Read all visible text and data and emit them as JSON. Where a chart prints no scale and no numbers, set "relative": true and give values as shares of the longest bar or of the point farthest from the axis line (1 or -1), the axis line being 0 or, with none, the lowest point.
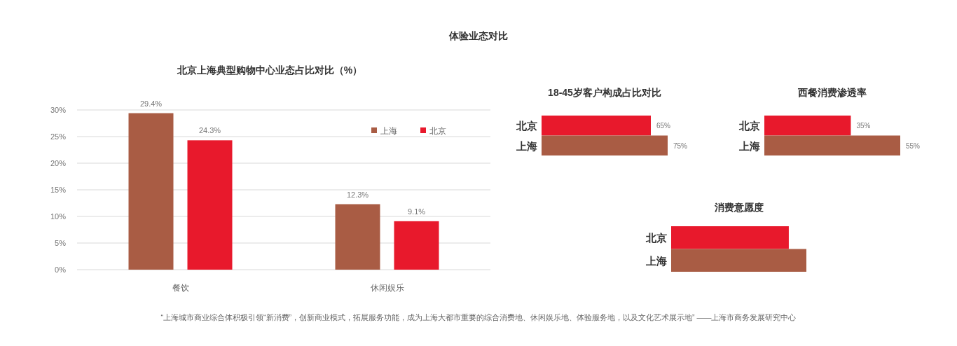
{
  "chart_data": [
    {
      "type": "other",
      "title": "体验业态对比"
    },
    {
      "type": "bar",
      "title": "北京上海典型购物中心业态占比对比（%）",
      "categories": [
        "餐饮",
        "休闲娱乐"
      ],
      "ylim": [
        0,
        30
      ],
      "yticks": [
        {
          "value": 0,
          "label": "0%"
        },
        {
          "value": 5,
          "label": "5%"
        },
        {
          "value": 10,
          "label": "10%"
        },
        {
          "value": 15,
          "label": "15%"
        },
        {
          "value": 20,
          "label": "20%"
        },
        {
          "value": 25,
          "label": "25%"
        },
        {
          "value": 30,
          "label": "30%"
        }
      ],
      "grid": "y",
      "legend": "top right",
      "series": [
        {
          "name": "上海",
          "color": "#a95c44",
          "values": [
            29.4,
            12.3
          ],
          "value_labels": [
            "29.4%",
            "12.3%"
          ]
        },
        {
          "name": "北京",
          "color": "#e8192c",
          "values": [
            24.3,
            9.1
          ],
          "value_labels": [
            "24.3%",
            "9.1%"
          ]
        }
      ]
    },
    {
      "type": "bar",
      "orientation": "horizontal",
      "title": "18-45岁客户构成占比对比",
      "categories": [
        "北京",
        "上海"
      ],
      "values": [
        65,
        75
      ],
      "colors": [
        "#e8192c",
        "#a95c44"
      ],
      "value_labels": [
        "65%",
        "75%"
      ]
    },
    {
      "type": "bar",
      "orientation": "horizontal",
      "title": "西餐消费渗透率",
      "categories": [
        "北京",
        "上海"
      ],
      "values": [
        35,
        55
      ],
      "colors": [
        "#e8192c",
        "#a95c44"
      ],
      "value_labels": [
        "35%",
        "55%"
      ]
    },
    {
      "type": "bar",
      "orientation": "horizontal",
      "relative": true,
      "title": "消费意愿度",
      "categories": [
        "北京",
        "上海"
      ],
      "values": [
        0.87,
        1
      ],
      "colors": [
        "#e8192c",
        "#a95c44"
      ]
    },
    {
      "type": "other",
      "annotations": [
        "“上海城市商业综合体积极引领“新消费”，创新商业模式，拓展服务功能，成为上海大都市重要的综合消费地、休闲娱乐地、体验服务地，以及文化艺术展示地” ——上海市商务发展研究中心"
      ]
    }
  ]
}
